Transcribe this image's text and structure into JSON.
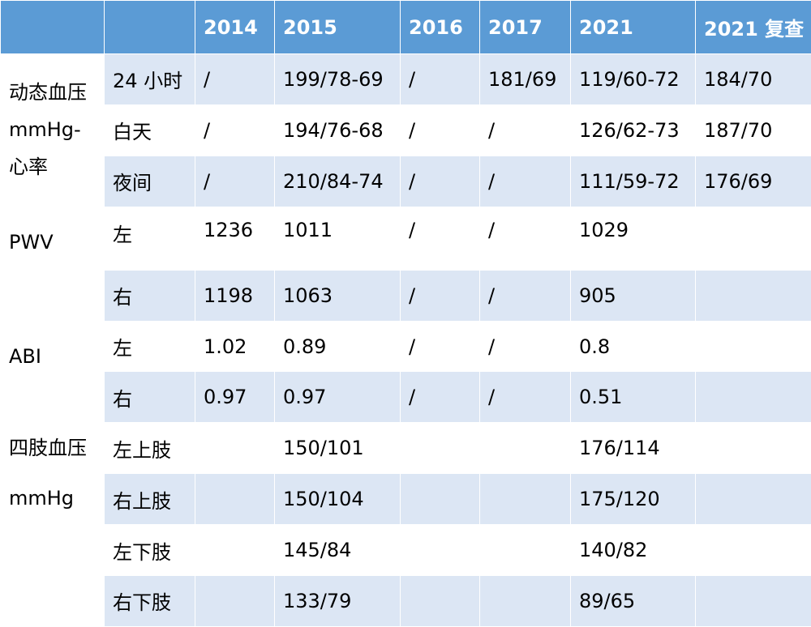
{
  "header": [
    "",
    "",
    "2014",
    "2015",
    "2016",
    "2017",
    "2021",
    "2021 复查"
  ],
  "groups": {
    "ambulatory": [
      "动态血压",
      "mmHg-",
      "心率"
    ],
    "pwv": [
      "PWV"
    ],
    "abi": [
      "ABI"
    ],
    "limb_bp": [
      "四肢血压",
      "mmHg"
    ]
  },
  "rows": [
    {
      "label": "24 小时",
      "cells": [
        "/",
        "199/78-69",
        "/",
        "181/69",
        "119/60-72",
        "184/70"
      ]
    },
    {
      "label": "白天",
      "cells": [
        "/",
        "194/76-68",
        "/",
        "/",
        "126/62-73",
        "187/70"
      ]
    },
    {
      "label": "夜间",
      "cells": [
        "/",
        "210/84-74",
        "/",
        "/",
        "111/59-72",
        "176/69"
      ]
    },
    {
      "label": "左",
      "cells": [
        "1236",
        "1011",
        "/",
        "/",
        "1029",
        ""
      ]
    },
    {
      "label": "右",
      "cells": [
        "1198",
        "1063",
        "/",
        "/",
        "905",
        ""
      ]
    },
    {
      "label": "左",
      "cells": [
        "1.02",
        "0.89",
        "/",
        "/",
        "0.8",
        ""
      ]
    },
    {
      "label": "右",
      "cells": [
        "0.97",
        "0.97",
        "/",
        "/",
        "0.51",
        ""
      ]
    },
    {
      "label": "左上肢",
      "cells": [
        "",
        "150/101",
        "",
        "",
        "176/114",
        ""
      ]
    },
    {
      "label": "右上肢",
      "cells": [
        "",
        "150/104",
        "",
        "",
        "175/120",
        ""
      ]
    },
    {
      "label": "左下肢",
      "cells": [
        "",
        "145/84",
        "",
        "",
        "140/82",
        ""
      ]
    },
    {
      "label": "右下肢",
      "cells": [
        "",
        "133/79",
        "",
        "",
        "89/65",
        ""
      ]
    }
  ]
}
